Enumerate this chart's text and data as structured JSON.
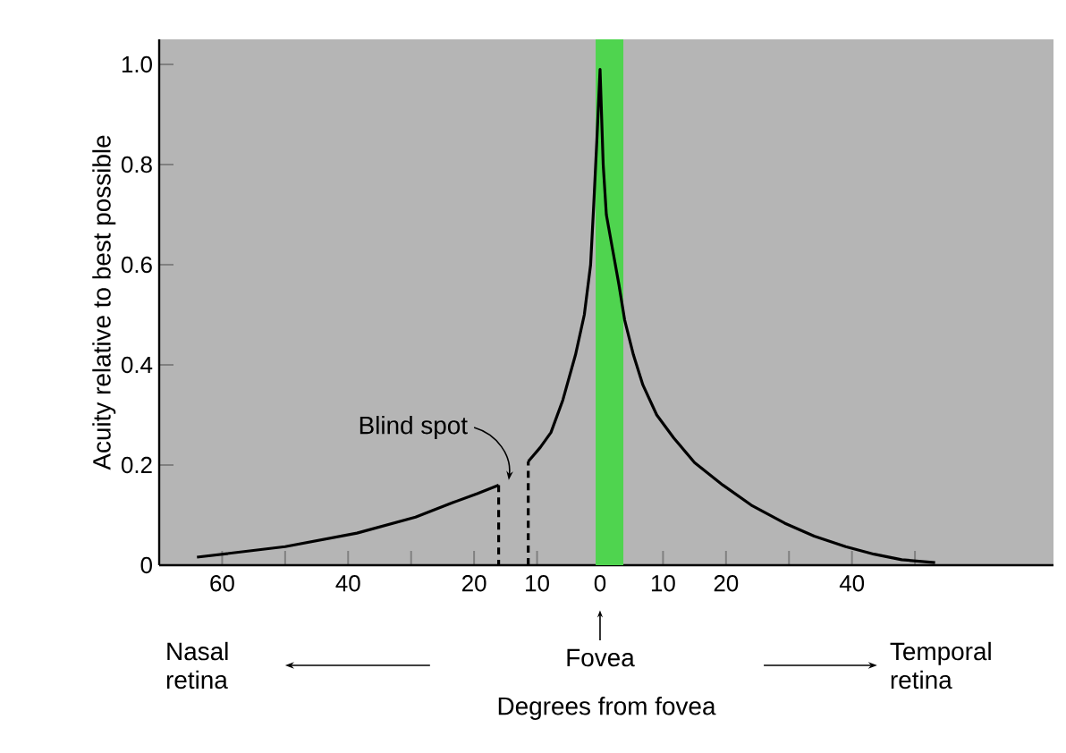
{
  "chart_data": {
    "type": "line",
    "xlabel": "Degrees from fovea",
    "ylabel": "Acuity relative to best possible",
    "xlim": [
      -70,
      72
    ],
    "ylim": [
      0,
      1.05
    ],
    "xticks": [
      {
        "value": -60,
        "label": "60"
      },
      {
        "value": -50,
        "label": null
      },
      {
        "value": -40,
        "label": "40"
      },
      {
        "value": -30,
        "label": null
      },
      {
        "value": -20,
        "label": "20"
      },
      {
        "value": -10,
        "label": "10"
      },
      0,
      {
        "value": 10,
        "label": "10"
      },
      {
        "value": 20,
        "label": "20"
      },
      {
        "value": 30,
        "label": null
      },
      {
        "value": 40,
        "label": "40"
      },
      {
        "value": 50,
        "label": null
      }
    ],
    "yticks": [
      0,
      0.2,
      0.4,
      0.6,
      0.8,
      {
        "value": 1.0,
        "label": "1.0"
      }
    ],
    "marker": "none",
    "line_style": "solid",
    "series": [
      {
        "color": "#000000",
        "x": [
          -64,
          -50,
          -38.6,
          -29.3,
          -23.4,
          -19.5,
          -16.1,
          -13.7,
          -11.4,
          -9.5,
          -7.8,
          -5.9,
          -3.9,
          -2.5,
          -1.5,
          -1,
          -0.5,
          0,
          0.5,
          1,
          2,
          3,
          3.9,
          5.3,
          6.8,
          9,
          11.7,
          15,
          19.5,
          24,
          29.3,
          34,
          39,
          43.5,
          47.9,
          53.2
        ],
        "values": [
          0.016,
          0.037,
          0.064,
          0.096,
          0.125,
          0.143,
          0.16,
          null,
          0.207,
          0.235,
          0.265,
          0.33,
          0.42,
          0.5,
          0.6,
          0.72,
          0.85,
          0.99,
          0.8,
          0.7,
          0.63,
          0.56,
          0.49,
          0.42,
          0.36,
          0.3,
          0.254,
          0.205,
          0.16,
          0.12,
          0.084,
          0.058,
          0.037,
          0.022,
          0.011,
          0.005
        ]
      },
      {
        "color": "#000000",
        "line_style": "dashed",
        "x": [
          -16.1,
          -16.1,
          -13.7,
          -11.4,
          -11.4
        ],
        "values": [
          0.16,
          0,
          null,
          0,
          0.207
        ]
      }
    ],
    "bands": [
      {
        "axis": "x",
        "from": -0.7,
        "to": 3.7,
        "color": "#4fd44f"
      }
    ],
    "annotations": [
      "Blind spot",
      "Nasal retina",
      "Fovea",
      "Temporal retina"
    ]
  }
}
